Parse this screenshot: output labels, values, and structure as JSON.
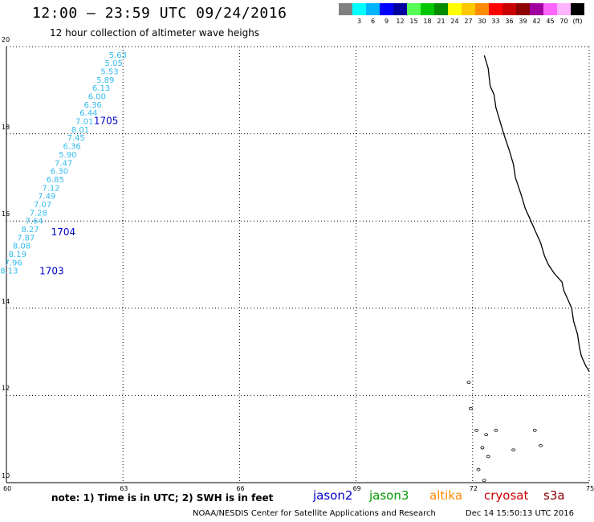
{
  "title": "12:00 – 23:59 UTC 09/24/2016",
  "subtitle": "12 hour collection of altimeter wave heighs",
  "legend": {
    "unit": "(ft)",
    "items": [
      {
        "color": "#808080",
        "label": ""
      },
      {
        "color": "#00ffff",
        "label": "3"
      },
      {
        "color": "#00b4ff",
        "label": "6"
      },
      {
        "color": "#0000ff",
        "label": "9"
      },
      {
        "color": "#0000a0",
        "label": "12"
      },
      {
        "color": "#55ff55",
        "label": "15"
      },
      {
        "color": "#00c800",
        "label": "18"
      },
      {
        "color": "#008c00",
        "label": "21"
      },
      {
        "color": "#ffff00",
        "label": "24"
      },
      {
        "color": "#ffc800",
        "label": "27"
      },
      {
        "color": "#ff8c00",
        "label": "30"
      },
      {
        "color": "#ff0000",
        "label": "33"
      },
      {
        "color": "#c80000",
        "label": "36"
      },
      {
        "color": "#8c0000",
        "label": "39"
      },
      {
        "color": "#a000a0",
        "label": "42"
      },
      {
        "color": "#ff64ff",
        "label": "45"
      },
      {
        "color": "#ffb4ff",
        "label": "70"
      },
      {
        "color": "#000000",
        "label": ""
      }
    ]
  },
  "map": {
    "lon_range": [
      60,
      75
    ],
    "lat_range": [
      10,
      20
    ],
    "lon_ticks": [
      "60",
      "63",
      "66",
      "69",
      "72",
      "75"
    ],
    "lat_ticks": [
      "10",
      "12",
      "14",
      "16",
      "18",
      "20"
    ],
    "grid": "dotted"
  },
  "track": {
    "color": "#33bbee",
    "start_lon": 63.1,
    "start_lat": 19.8,
    "end_lon": 60.3,
    "end_lat": 14.85,
    "values": [
      "5.63",
      "5.05",
      "5.53",
      "5.89",
      "6.13",
      "6.00",
      "6.36",
      "6.44",
      "7.01",
      "8.01",
      "7.45",
      "6.36",
      "5.90",
      "7.47",
      "6.30",
      "6.85",
      "7.12",
      "7.49",
      "7.07",
      "7.28",
      "7.64",
      "8.27",
      "7.87",
      "8.08",
      "8.19",
      "7.96",
      "8.13"
    ]
  },
  "time_labels": [
    {
      "text": "1705",
      "color": "#0000cc",
      "lon": 62.25,
      "lat": 18.3
    },
    {
      "text": "1704",
      "color": "#0000cc",
      "lon": 61.15,
      "lat": 15.75
    },
    {
      "text": "1703",
      "color": "#0000cc",
      "lon": 60.85,
      "lat": 14.85
    }
  ],
  "coast_color": "#000000",
  "footer": {
    "note": "note:  1) Time is in UTC;  2) SWH is in feet",
    "credit": "NOAA/NESDIS Center for Satellite Applications and Research",
    "date": "Dec 14 15:50:13 UTC 2016",
    "missions": [
      {
        "name": "jason2",
        "color": "#0000cc"
      },
      {
        "name": "jason3",
        "color": "#009900"
      },
      {
        "name": "altika",
        "color": "#ff8800"
      },
      {
        "name": "cryosat",
        "color": "#cc0000"
      },
      {
        "name": "s3a",
        "color": "#880000"
      }
    ]
  }
}
